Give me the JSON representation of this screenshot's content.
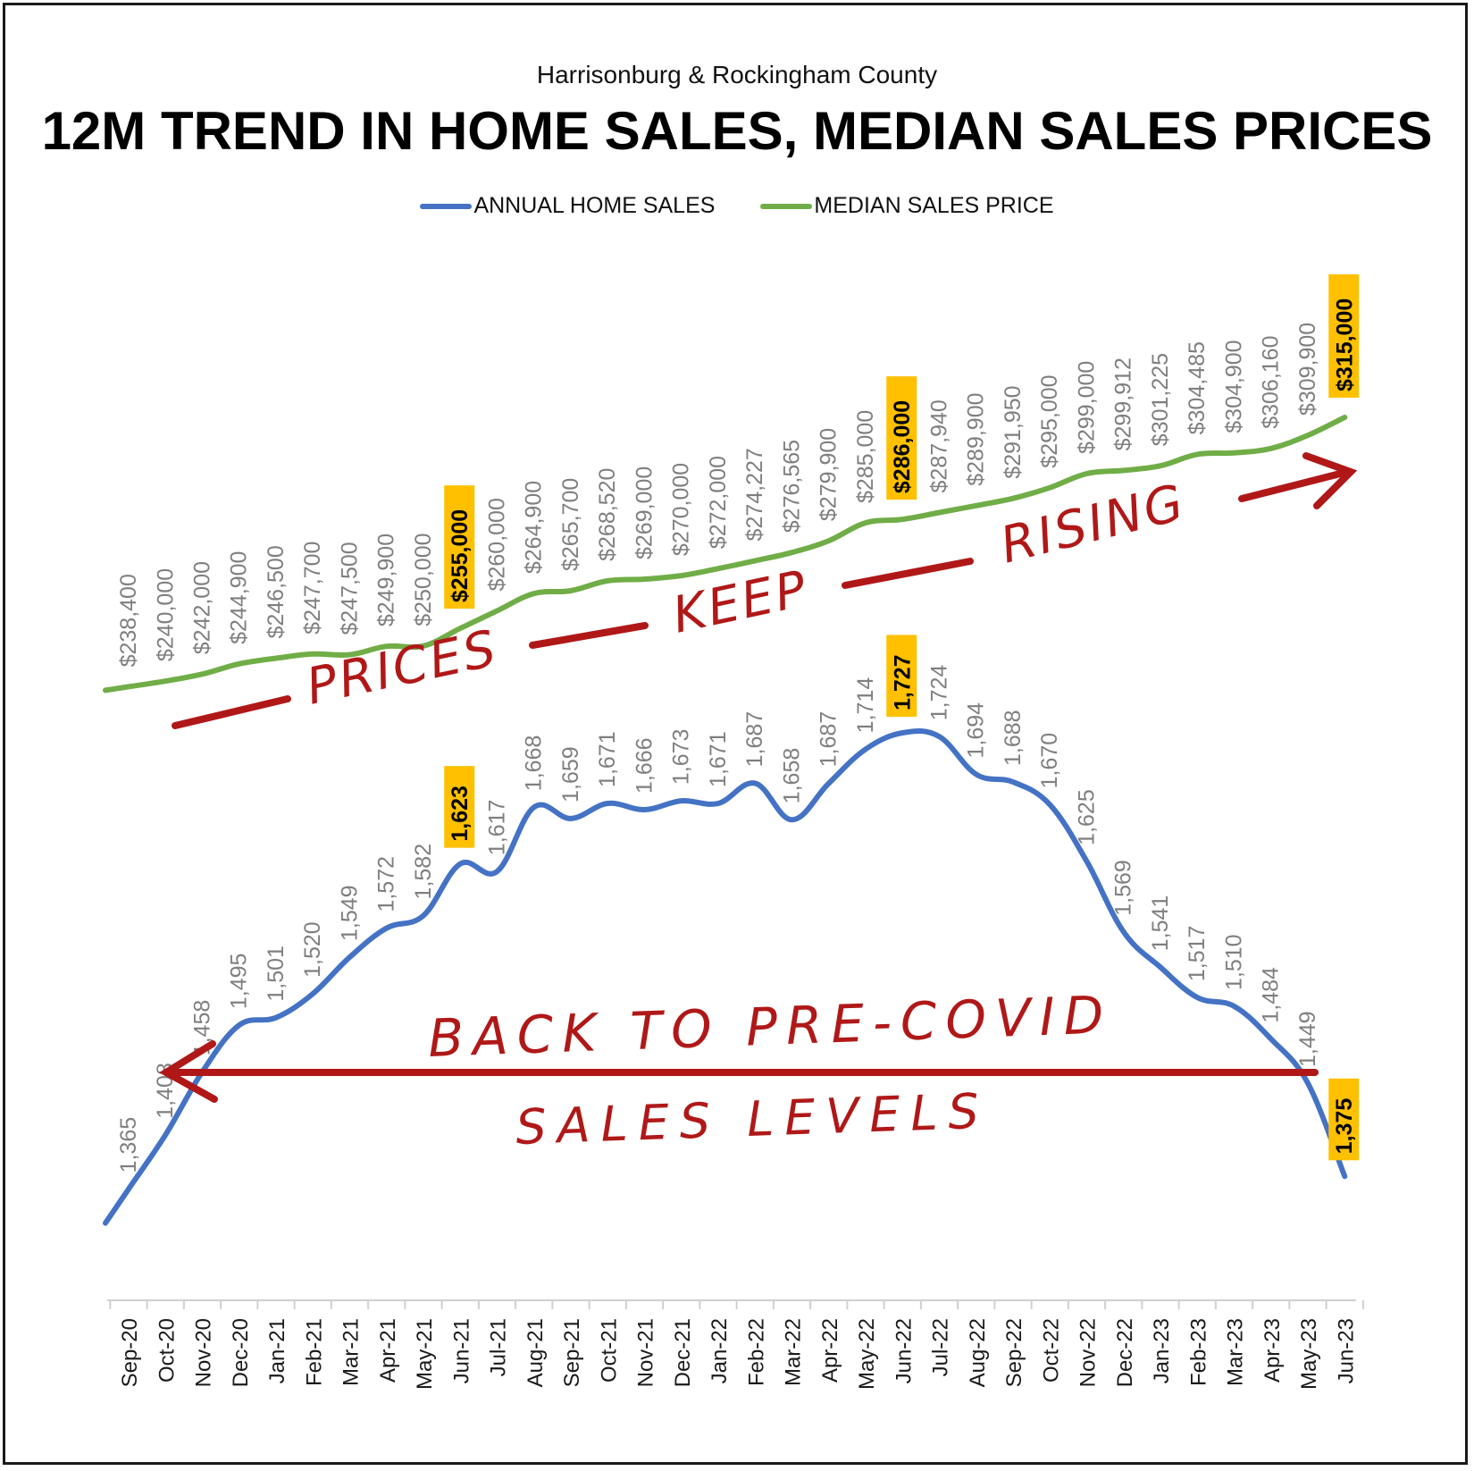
{
  "chart_data": {
    "type": "line",
    "subtitle": "Harrisonburg & Rockingham County",
    "title": "12M TREND IN HOME SALES, MEDIAN SALES PRICES",
    "categories": [
      "Sep-20",
      "Oct-20",
      "Nov-20",
      "Dec-20",
      "Jan-21",
      "Feb-21",
      "Mar-21",
      "Apr-21",
      "May-21",
      "Jun-21",
      "Jul-21",
      "Aug-21",
      "Sep-21",
      "Oct-21",
      "Nov-21",
      "Dec-21",
      "Jan-22",
      "Feb-22",
      "Mar-22",
      "Apr-22",
      "May-22",
      "Jun-22",
      "Jul-22",
      "Aug-22",
      "Sep-22",
      "Oct-22",
      "Nov-22",
      "Dec-22",
      "Jan-23",
      "Feb-23",
      "Mar-23",
      "Apr-23",
      "May-23",
      "Jun-23"
    ],
    "series": [
      {
        "name": "ANNUAL HOME SALES",
        "color": "#4472C4",
        "values": [
          1365,
          1408,
          1458,
          1495,
          1501,
          1520,
          1549,
          1572,
          1582,
          1623,
          1617,
          1668,
          1659,
          1671,
          1666,
          1673,
          1671,
          1687,
          1658,
          1687,
          1714,
          1727,
          1724,
          1694,
          1688,
          1670,
          1625,
          1569,
          1541,
          1517,
          1510,
          1484,
          1449,
          1375
        ],
        "labels": [
          "1,365",
          "1,408",
          "1,458",
          "1,495",
          "1,501",
          "1,520",
          "1,549",
          "1,572",
          "1,582",
          "1,623",
          "1,617",
          "1,668",
          "1,659",
          "1,671",
          "1,666",
          "1,673",
          "1,671",
          "1,687",
          "1,658",
          "1,687",
          "1,714",
          "1,727",
          "1,724",
          "1,694",
          "1,688",
          "1,670",
          "1,625",
          "1,569",
          "1,541",
          "1,517",
          "1,510",
          "1,484",
          "1,449",
          "1,375"
        ],
        "highlight_index": [
          9,
          21,
          33
        ]
      },
      {
        "name": "MEDIAN SALES PRICE",
        "color": "#70AD47",
        "values": [
          238400,
          240000,
          242000,
          244900,
          246500,
          247700,
          247500,
          249900,
          250000,
          255000,
          260000,
          264900,
          265700,
          268520,
          269000,
          270000,
          272000,
          274227,
          276565,
          279900,
          285000,
          286000,
          287940,
          289900,
          291950,
          295000,
          299000,
          299912,
          301225,
          304485,
          304900,
          306160,
          309900,
          315000
        ],
        "labels": [
          "$238,400",
          "$240,000",
          "$242,000",
          "$244,900",
          "$246,500",
          "$247,700",
          "$247,500",
          "$249,900",
          "$250,000",
          "$255,000",
          "$260,000",
          "$264,900",
          "$265,700",
          "$268,520",
          "$269,000",
          "$270,000",
          "$272,000",
          "$274,227",
          "$276,565",
          "$279,900",
          "$285,000",
          "$286,000",
          "$287,940",
          "$289,900",
          "$291,950",
          "$295,000",
          "$299,000",
          "$299,912",
          "$301,225",
          "$304,485",
          "$304,900",
          "$306,160",
          "$309,900",
          "$315,000"
        ],
        "highlight_index": [
          9,
          21,
          33
        ]
      }
    ],
    "highlight_color": "#FFC000",
    "label_color": "#7F7F7F",
    "legend_position": "top-center",
    "grid": false,
    "annotations": {
      "prices_text": [
        "PRICES",
        "KEEP",
        "RISING"
      ],
      "sales_text": [
        "BACK TO PRE-COVID",
        "SALES LEVELS"
      ],
      "color": "#B01818"
    }
  }
}
